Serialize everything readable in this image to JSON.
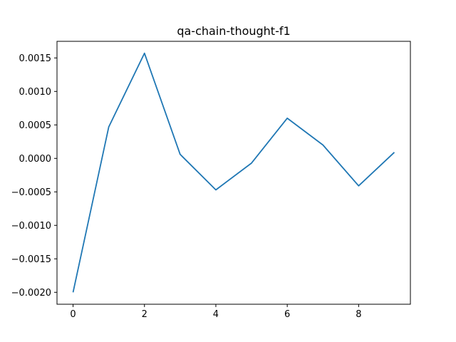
{
  "chart_data": {
    "type": "line",
    "title": "qa-chain-thought-f1",
    "xlabel": "",
    "ylabel": "",
    "x": [
      0,
      1,
      2,
      3,
      4,
      5,
      6,
      7,
      8,
      9
    ],
    "series": [
      {
        "values": [
          -0.002,
          0.00047,
          0.00157,
          6e-05,
          -0.00047,
          -7e-05,
          0.0006,
          0.0002,
          -0.00041,
          9e-05
        ],
        "color": "#1f77b4"
      }
    ],
    "xlim": [
      -0.45,
      9.45
    ],
    "ylim": [
      -0.002178,
      0.001748
    ],
    "x_ticks": [
      0,
      2,
      4,
      6,
      8
    ],
    "x_tick_labels": [
      "0",
      "2",
      "4",
      "6",
      "8"
    ],
    "y_ticks": [
      -0.002,
      -0.0015,
      -0.001,
      -0.0005,
      0.0,
      0.0005,
      0.001,
      0.0015
    ],
    "y_tick_labels": [
      "−0.0020",
      "−0.0015",
      "−0.0010",
      "−0.0005",
      "0.0000",
      "0.0005",
      "0.0010",
      "0.0015"
    ],
    "grid": false,
    "legend": "none"
  }
}
